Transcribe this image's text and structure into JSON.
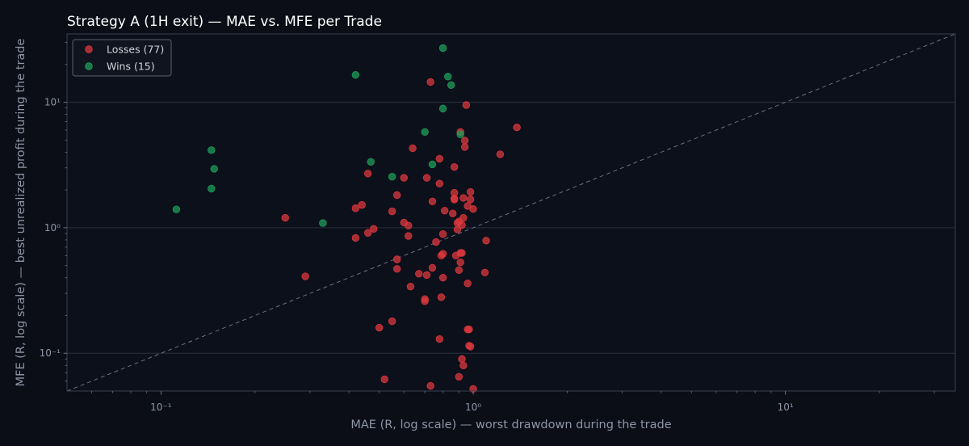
{
  "chart_data": {
    "type": "scatter",
    "title": "Strategy A (1H exit) — MAE vs. MFE per Trade",
    "xlabel": "MAE (R, log scale) — worst drawdown during the trade",
    "ylabel": "MFE (R, log scale) — best unrealized profit during the trade",
    "xscale": "log",
    "yscale": "log",
    "xlim": [
      0.05,
      35
    ],
    "ylim": [
      0.05,
      35
    ],
    "x_ticks": [
      {
        "value": 0.1,
        "label": "10⁻¹"
      },
      {
        "value": 1,
        "label": "10⁰"
      },
      {
        "value": 10,
        "label": "10¹"
      }
    ],
    "y_ticks": [
      {
        "value": 0.1,
        "label": "10⁻¹"
      },
      {
        "value": 1,
        "label": "10⁰"
      },
      {
        "value": 10,
        "label": "10¹"
      }
    ],
    "grid": "horizontal major",
    "reference_line": "y = x",
    "legend_position": "top-left",
    "series": [
      {
        "name": "Losses (77)",
        "color": "#e0393d",
        "points": [
          [
            0.25,
            1.2
          ],
          [
            0.29,
            0.41
          ],
          [
            0.42,
            0.83
          ],
          [
            0.42,
            1.43
          ],
          [
            0.44,
            1.52
          ],
          [
            0.46,
            2.7
          ],
          [
            0.46,
            0.91
          ],
          [
            0.48,
            0.98
          ],
          [
            0.5,
            0.16
          ],
          [
            0.55,
            1.35
          ],
          [
            0.55,
            0.18
          ],
          [
            0.57,
            1.82
          ],
          [
            0.57,
            0.47
          ],
          [
            0.57,
            0.56
          ],
          [
            0.6,
            1.1
          ],
          [
            0.6,
            2.5
          ],
          [
            0.62,
            1.04
          ],
          [
            0.62,
            0.86
          ],
          [
            0.63,
            0.34
          ],
          [
            0.64,
            4.3
          ],
          [
            0.67,
            0.43
          ],
          [
            0.7,
            0.26
          ],
          [
            0.7,
            0.27
          ],
          [
            0.71,
            0.42
          ],
          [
            0.71,
            2.5
          ],
          [
            0.73,
            14.5
          ],
          [
            0.74,
            1.62
          ],
          [
            0.74,
            0.48
          ],
          [
            0.76,
            0.77
          ],
          [
            0.78,
            2.25
          ],
          [
            0.78,
            3.55
          ],
          [
            0.78,
            0.13
          ],
          [
            0.79,
            0.6
          ],
          [
            0.79,
            0.28
          ],
          [
            0.8,
            0.62
          ],
          [
            0.8,
            0.4
          ],
          [
            0.8,
            0.89
          ],
          [
            0.81,
            1.37
          ],
          [
            0.86,
            1.3
          ],
          [
            0.87,
            1.9
          ],
          [
            0.87,
            1.68
          ],
          [
            0.87,
            1.71
          ],
          [
            0.87,
            3.05
          ],
          [
            0.89,
            0.97
          ],
          [
            0.89,
            1.09
          ],
          [
            0.9,
            0.46
          ],
          [
            0.9,
            1.12
          ],
          [
            0.91,
            5.8
          ],
          [
            0.91,
            0.53
          ],
          [
            0.91,
            0.63
          ],
          [
            0.92,
            0.63
          ],
          [
            0.92,
            1.05
          ],
          [
            0.92,
            0.09
          ],
          [
            0.93,
            0.08
          ],
          [
            0.93,
            1.2
          ],
          [
            0.93,
            1.73
          ],
          [
            0.94,
            4.4
          ],
          [
            0.94,
            4.95
          ],
          [
            0.95,
            9.5
          ],
          [
            0.96,
            1.49
          ],
          [
            0.96,
            0.36
          ],
          [
            0.96,
            0.155
          ],
          [
            0.97,
            0.155
          ],
          [
            0.97,
            0.115
          ],
          [
            0.98,
            1.68
          ],
          [
            0.98,
            1.93
          ],
          [
            0.98,
            0.113
          ],
          [
            1.0,
            1.41
          ],
          [
            1.09,
            0.44
          ],
          [
            1.1,
            0.79
          ],
          [
            1.22,
            3.85
          ],
          [
            1.38,
            6.3
          ],
          [
            0.52,
            0.062
          ],
          [
            0.73,
            0.055
          ],
          [
            0.9,
            0.065
          ],
          [
            1.0,
            0.052
          ],
          [
            0.88,
            0.6
          ]
        ]
      },
      {
        "name": "Wins (15)",
        "color": "#1ea15a",
        "points": [
          [
            0.112,
            1.4
          ],
          [
            0.145,
            4.15
          ],
          [
            0.145,
            2.05
          ],
          [
            0.148,
            2.95
          ],
          [
            0.33,
            1.09
          ],
          [
            0.42,
            16.5
          ],
          [
            0.47,
            3.35
          ],
          [
            0.55,
            2.55
          ],
          [
            0.7,
            5.8
          ],
          [
            0.74,
            3.2
          ],
          [
            0.8,
            27.0
          ],
          [
            0.8,
            8.9
          ],
          [
            0.83,
            16.0
          ],
          [
            0.85,
            13.7
          ],
          [
            0.91,
            5.55
          ]
        ]
      }
    ]
  }
}
